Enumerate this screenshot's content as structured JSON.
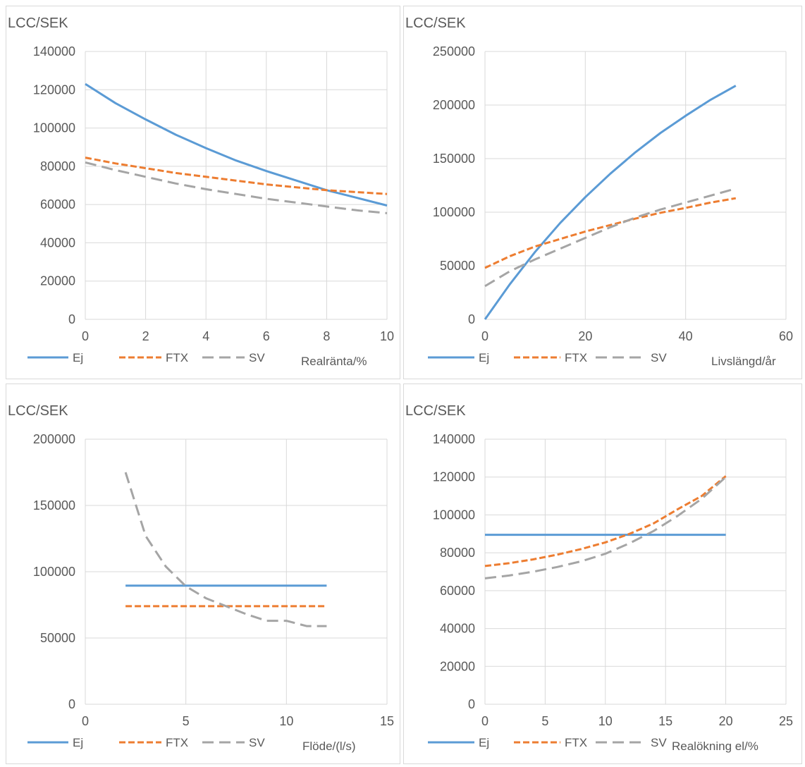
{
  "chart_data": [
    {
      "type": "line",
      "ylabel": "LCC/SEK",
      "xlabel": "Realränta/%",
      "xlim": [
        0,
        10
      ],
      "ylim": [
        0,
        140000
      ],
      "xticks": [
        "0",
        "2",
        "4",
        "6",
        "8",
        "10"
      ],
      "yticks": [
        "0",
        "20000",
        "40000",
        "60000",
        "80000",
        "100000",
        "120000",
        "140000"
      ],
      "legend": "bottom",
      "grid": true,
      "series": [
        {
          "name": "Ej",
          "color": "#5b9bd5",
          "style": "solid",
          "x": [
            0,
            1,
            2,
            3,
            4,
            5,
            6,
            7,
            8,
            9,
            10
          ],
          "y": [
            123000,
            113000,
            104500,
            96500,
            89500,
            83000,
            77500,
            72500,
            67500,
            63500,
            59500
          ]
        },
        {
          "name": "FTX",
          "color": "#ed7d31",
          "style": "dash",
          "x": [
            0,
            1,
            2,
            3,
            4,
            5,
            6,
            7,
            8,
            9,
            10
          ],
          "y": [
            84500,
            81500,
            79000,
            76500,
            74500,
            72500,
            70500,
            69000,
            67500,
            66500,
            65500
          ]
        },
        {
          "name": "SV",
          "color": "#a5a5a5",
          "style": "longdash",
          "x": [
            0,
            1,
            2,
            3,
            4,
            5,
            6,
            7,
            8,
            9,
            10
          ],
          "y": [
            82000,
            78000,
            74500,
            71000,
            68000,
            65500,
            63000,
            61000,
            59000,
            57000,
            55500
          ]
        }
      ]
    },
    {
      "type": "line",
      "ylabel": "LCC/SEK",
      "xlabel": "Livslängd/år",
      "xlim": [
        0,
        60
      ],
      "ylim": [
        0,
        250000
      ],
      "xticks": [
        "0",
        "20",
        "40",
        "60"
      ],
      "yticks": [
        "0",
        "50000",
        "100000",
        "150000",
        "200000",
        "250000"
      ],
      "legend": "bottom",
      "grid": true,
      "series": [
        {
          "name": "Ej",
          "color": "#5b9bd5",
          "style": "solid",
          "x": [
            0,
            5,
            10,
            15,
            20,
            25,
            30,
            35,
            40,
            45,
            50
          ],
          "y": [
            0,
            33000,
            63000,
            90000,
            114000,
            136000,
            156000,
            174000,
            190000,
            205000,
            218000
          ]
        },
        {
          "name": "FTX",
          "color": "#ed7d31",
          "style": "dash",
          "x": [
            0,
            5,
            10,
            15,
            20,
            25,
            30,
            35,
            40,
            45,
            50
          ],
          "y": [
            48000,
            59000,
            68000,
            75000,
            82000,
            88000,
            94000,
            99500,
            104000,
            109000,
            113000
          ]
        },
        {
          "name": "SV",
          "color": "#a5a5a5",
          "style": "longdash",
          "x": [
            0,
            5,
            10,
            15,
            20,
            25,
            30,
            35,
            40,
            45,
            50
          ],
          "y": [
            31000,
            45000,
            56000,
            66000,
            76000,
            86000,
            95000,
            102500,
            109000,
            115500,
            122000
          ]
        }
      ]
    },
    {
      "type": "line",
      "ylabel": "LCC/SEK",
      "xlabel": "Flöde/(l/s)",
      "xlim": [
        0,
        15
      ],
      "ylim": [
        0,
        200000
      ],
      "xticks": [
        "0",
        "5",
        "10",
        "15"
      ],
      "yticks": [
        "0",
        "50000",
        "100000",
        "150000",
        "200000"
      ],
      "legend": "bottom",
      "grid": true,
      "series": [
        {
          "name": "Ej",
          "color": "#5b9bd5",
          "style": "solid",
          "x": [
            2,
            12
          ],
          "y": [
            89500,
            89500
          ]
        },
        {
          "name": "FTX",
          "color": "#ed7d31",
          "style": "dash",
          "x": [
            2,
            12
          ],
          "y": [
            74000,
            74000
          ]
        },
        {
          "name": "SV",
          "color": "#a5a5a5",
          "style": "longdash",
          "x": [
            2,
            3,
            4,
            5,
            6,
            7,
            8,
            9,
            10,
            11,
            12
          ],
          "y": [
            175000,
            127000,
            104000,
            89000,
            80000,
            74000,
            68000,
            63000,
            63000,
            59000,
            59000
          ]
        }
      ]
    },
    {
      "type": "line",
      "ylabel": "LCC/SEK",
      "xlabel": "Realökning el/%",
      "xlim": [
        0,
        25
      ],
      "ylim": [
        0,
        140000
      ],
      "xticks": [
        "0",
        "5",
        "10",
        "15",
        "20",
        "25"
      ],
      "yticks": [
        "0",
        "20000",
        "40000",
        "60000",
        "80000",
        "100000",
        "120000",
        "140000"
      ],
      "legend": "bottom",
      "grid": true,
      "series": [
        {
          "name": "Ej",
          "color": "#5b9bd5",
          "style": "solid",
          "x": [
            0,
            20
          ],
          "y": [
            89500,
            89500
          ]
        },
        {
          "name": "FTX",
          "color": "#ed7d31",
          "style": "dash",
          "x": [
            0,
            2,
            4,
            6,
            8,
            10,
            12,
            14,
            16,
            18,
            20
          ],
          "y": [
            73000,
            74500,
            76500,
            79000,
            82000,
            85500,
            90000,
            95500,
            103000,
            110000,
            120500
          ]
        },
        {
          "name": "SV",
          "color": "#a5a5a5",
          "style": "longdash",
          "x": [
            0,
            2,
            4,
            6,
            8,
            10,
            12,
            14,
            16,
            18,
            20
          ],
          "y": [
            66500,
            68000,
            70000,
            72500,
            75500,
            79500,
            85000,
            91500,
            99500,
            108500,
            120000
          ]
        }
      ]
    }
  ]
}
